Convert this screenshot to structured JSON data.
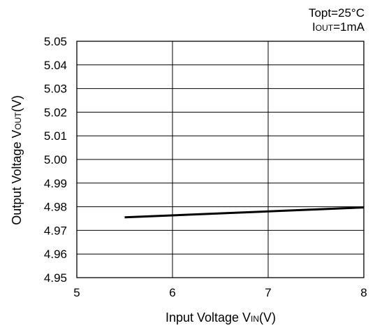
{
  "chart_data": {
    "type": "line",
    "conditions": {
      "line1": "Topt=25°C",
      "line2_main": "I",
      "line2_sub": "OUT",
      "line2_rest": "=1mA"
    },
    "xlabel": {
      "main": "Input Voltage V",
      "sub": "IN",
      "rest": "(V)"
    },
    "ylabel": {
      "main": "Output Voltage V",
      "sub": "OUT",
      "rest": "(V)"
    },
    "xlim": [
      5,
      8
    ],
    "ylim": [
      4.95,
      5.05
    ],
    "x_ticks": [
      "5",
      "6",
      "7",
      "8"
    ],
    "y_ticks": [
      "5.05",
      "5.04",
      "5.03",
      "5.02",
      "5.01",
      "5.00",
      "4.99",
      "4.98",
      "4.97",
      "4.96",
      "4.95"
    ],
    "grid": true,
    "series": [
      {
        "x": [
          5.5,
          8.0
        ],
        "y": [
          4.9755,
          4.9797
        ]
      }
    ]
  }
}
